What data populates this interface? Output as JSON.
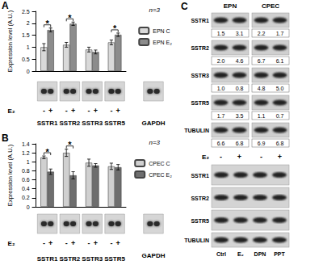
{
  "chart_data": [
    {
      "type": "bar",
      "title": "A",
      "note": "n=3",
      "ylabel": "Expression level (A.U.)",
      "categories": [
        "SSTR1",
        "SSTR2",
        "SSTR3",
        "SSTR5"
      ],
      "series": [
        {
          "name": "EPN C",
          "color": "#d9d9d9",
          "values": [
            1.0,
            1.1,
            0.9,
            1.2
          ],
          "errors": [
            0.15,
            0.1,
            0.1,
            0.1
          ]
        },
        {
          "name": "EPN E₂",
          "color": "#8c8c8c",
          "values": [
            1.72,
            1.98,
            0.8,
            1.52
          ],
          "errors": [
            0.08,
            0.07,
            0.08,
            0.07
          ]
        }
      ],
      "ylim": [
        0,
        2.5
      ],
      "yticks": [
        0,
        0.5,
        1,
        1.5,
        2,
        2.5
      ],
      "grid": false,
      "legend": "right",
      "significance": [
        {
          "category": "SSTR1",
          "text": "*"
        },
        {
          "category": "SSTR2",
          "text": "*"
        },
        {
          "category": "SSTR5",
          "text": "*"
        }
      ],
      "blot": {
        "treatment": "E₂",
        "lanes": [
          "-",
          "+"
        ],
        "control": "GAPDH"
      }
    },
    {
      "type": "bar",
      "title": "B",
      "note": "n=3",
      "ylabel": "Expression level (A.U.)",
      "categories": [
        "SSTR1",
        "SSTR2",
        "SSTR3",
        "SSTR5"
      ],
      "series": [
        {
          "name": "CPEC C",
          "color": "#d0d0d0",
          "values": [
            1.1,
            1.2,
            0.98,
            0.9
          ],
          "errors": [
            0.03,
            0.08,
            0.08,
            0.07
          ]
        },
        {
          "name": "CPEC E₂",
          "color": "#6e6e6e",
          "values": [
            0.78,
            0.7,
            0.92,
            0.88
          ],
          "errors": [
            0.06,
            0.08,
            0.04,
            0.06
          ]
        }
      ],
      "ylim": [
        0,
        1.4
      ],
      "yticks": [
        0,
        0.2,
        0.4,
        0.6,
        0.8,
        1,
        1.2,
        1.4
      ],
      "grid": false,
      "legend": "right",
      "significance": [
        {
          "category": "SSTR1",
          "text": "*"
        },
        {
          "category": "SSTR2",
          "text": "*"
        }
      ],
      "blot": {
        "treatment": "E₂",
        "lanes": [
          "-",
          "+"
        ],
        "control": "GAPDH"
      }
    }
  ],
  "blots": {
    "title": "C",
    "groups": [
      "EPN",
      "CPEC"
    ],
    "treatment": "E₂",
    "lanes": [
      "-",
      "+"
    ],
    "rows": [
      {
        "label": "SSTR1",
        "values": [
          "1.5",
          "3.1",
          "2.2",
          "1.7"
        ]
      },
      {
        "label": "SSTR2",
        "values": [
          "2.0",
          "4.6",
          "6.7",
          "6.1"
        ]
      },
      {
        "label": "SSTR3",
        "values": [
          "1.0",
          "0.8",
          "4.8",
          "5.0"
        ]
      },
      {
        "label": "SSTR5",
        "values": [
          "1.7",
          "3.5",
          "1.1",
          "0.7"
        ]
      },
      {
        "label": "TUBULIN",
        "values": [
          "6.6",
          "6.8",
          "6.9",
          "6.8"
        ]
      }
    ],
    "comparison": {
      "rows": [
        "SSTR1",
        "SSTR2",
        "SSTR5",
        "TUBULIN"
      ],
      "lanes": [
        "Ctrl",
        "E₂",
        "DPN",
        "PPT"
      ]
    }
  }
}
